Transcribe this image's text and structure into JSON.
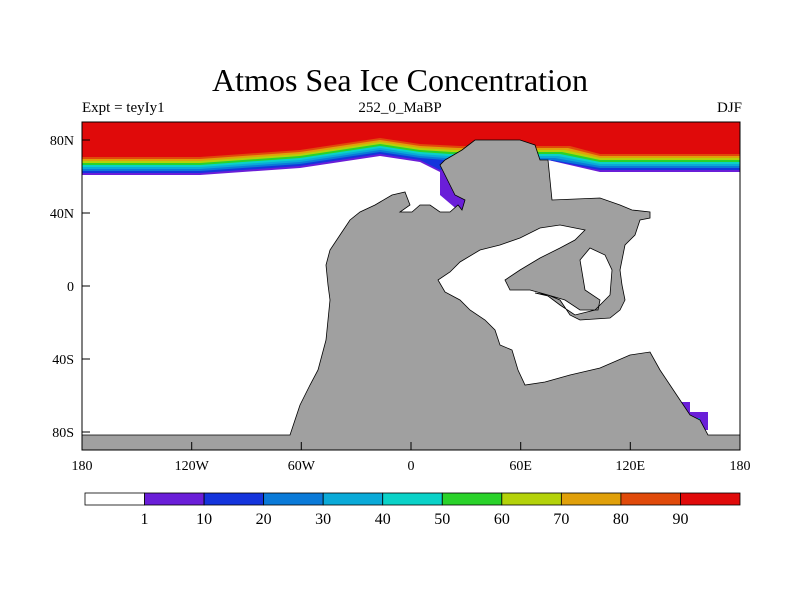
{
  "title": "Atmos Sea Ice Concentration",
  "subtitle_left": "Expt = teyIy1",
  "subtitle_center": "252_0_MaBP",
  "subtitle_right": "DJF",
  "lat_ticks": [
    "80N",
    "40N",
    "0",
    "40S",
    "80S"
  ],
  "lon_ticks": [
    "180",
    "120W",
    "60W",
    "0",
    "60E",
    "120E",
    "180"
  ],
  "colorbar": {
    "labels": [
      "1",
      "10",
      "20",
      "30",
      "40",
      "50",
      "60",
      "70",
      "80",
      "90"
    ],
    "colors": [
      "#ffffff",
      "#6a1ed8",
      "#1434dc",
      "#0a7ad8",
      "#0aaad8",
      "#0ad2c8",
      "#2ad22a",
      "#b4d20a",
      "#e0a00a",
      "#e04a0a",
      "#e00a0a"
    ]
  },
  "colors": {
    "land": "#a0a0a0",
    "ocean": "#ffffff",
    "ice_max": "#e00a0a"
  }
}
